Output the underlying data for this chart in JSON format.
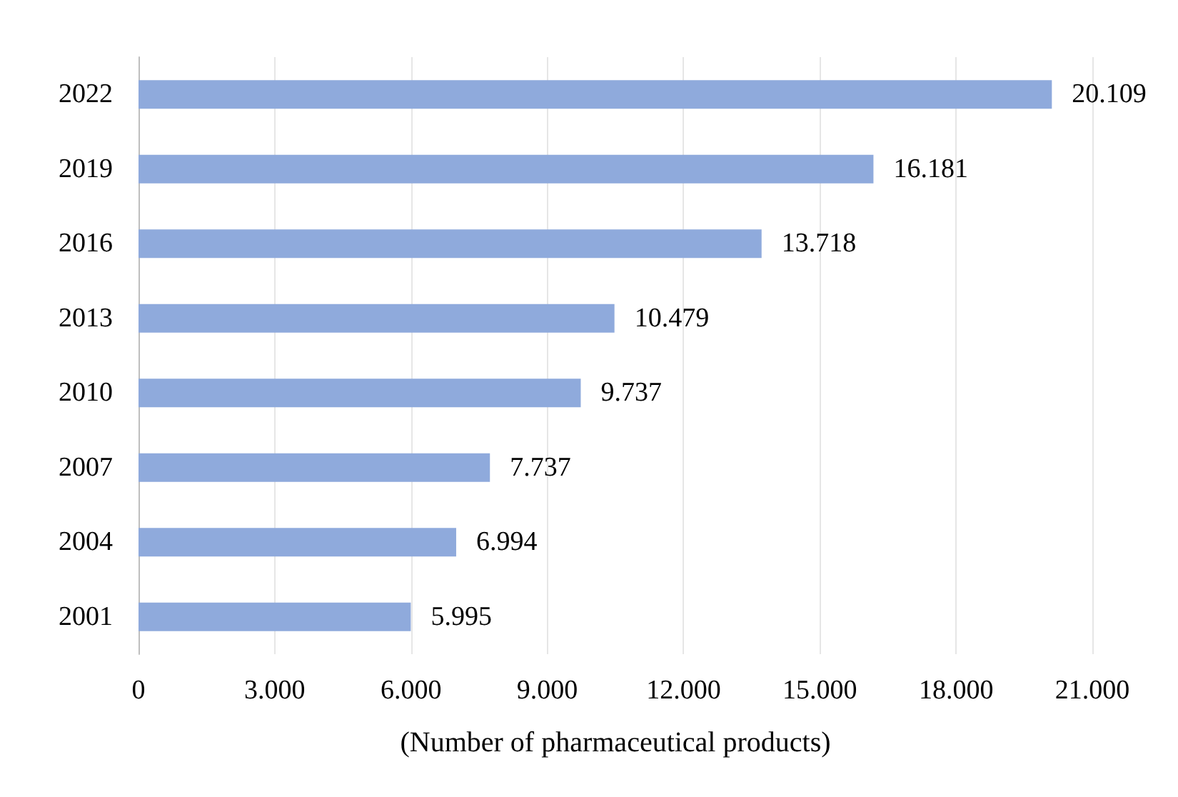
{
  "chart_data": {
    "type": "bar",
    "orientation": "horizontal",
    "xlabel": "(Number of pharmaceutical products)",
    "categories": [
      "2022",
      "2019",
      "2016",
      "2013",
      "2010",
      "2007",
      "2004",
      "2001"
    ],
    "values": [
      20109,
      16181,
      13718,
      10479,
      9737,
      7737,
      6994,
      5995
    ],
    "value_labels": [
      "20.109",
      "16.181",
      "13.718",
      "10.479",
      "9.737",
      "7.737",
      "6.994",
      "5.995"
    ],
    "color": "#8faadc",
    "xlim": [
      0,
      21000
    ],
    "xticks": [
      0,
      {
        "value": 3000,
        "label": "3.000"
      },
      {
        "value": 6000,
        "label": "6.000"
      },
      {
        "value": 9000,
        "label": "9.000"
      },
      {
        "value": 12000,
        "label": "12.000"
      },
      {
        "value": 15000,
        "label": "15.000"
      },
      {
        "value": 18000,
        "label": "18.000"
      },
      {
        "value": 21000,
        "label": "21.000"
      }
    ],
    "grid": "x"
  }
}
